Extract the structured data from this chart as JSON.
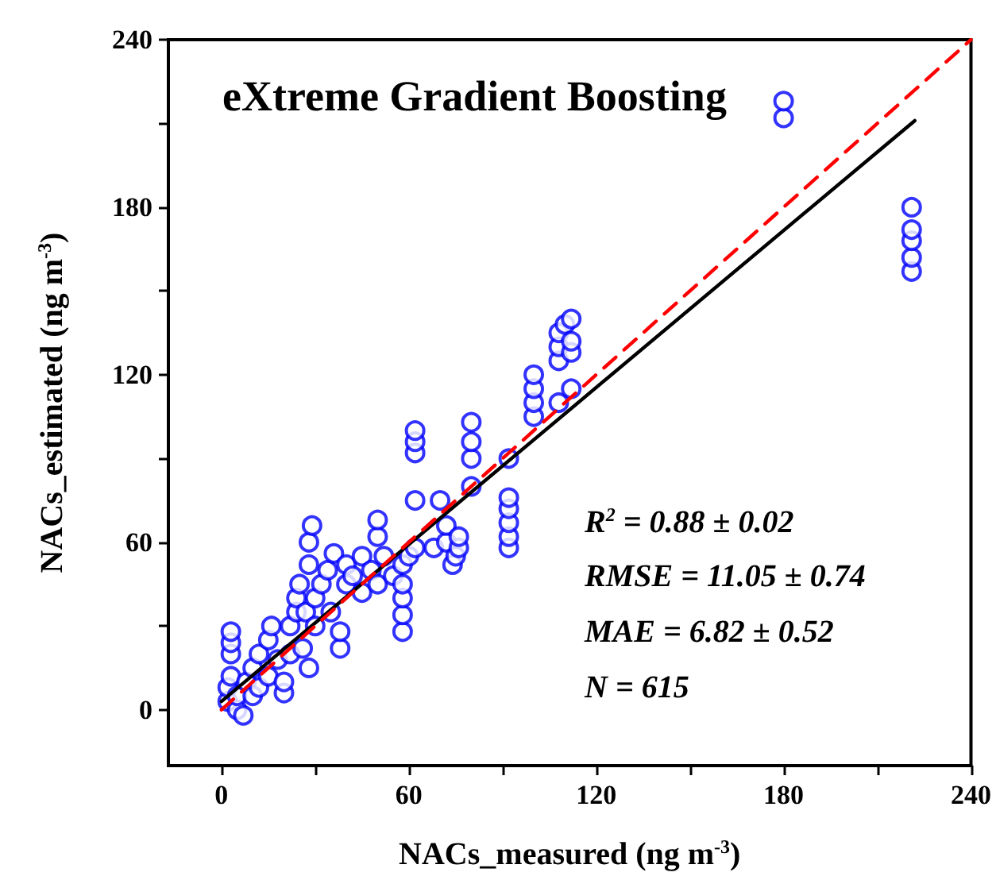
{
  "chart_data": {
    "type": "scatter",
    "title": "eXtreme Gradient Boosting",
    "xlabel": "NACs_measured (ng m$^{-3}$)",
    "ylabel": "NACs_estimated (ng m$^{-3}$)",
    "xlim": [
      -17,
      240
    ],
    "ylim": [
      -20,
      240
    ],
    "xticks": [
      0,
      {
        "value": 30,
        "label": null
      },
      60,
      {
        "value": 90,
        "label": null
      },
      120,
      {
        "value": 150,
        "label": null
      },
      180,
      {
        "value": 210,
        "label": null
      },
      240
    ],
    "yticks": [
      0,
      {
        "value": 30,
        "label": null
      },
      60,
      {
        "value": 90,
        "label": null
      },
      120,
      {
        "value": 150,
        "label": null
      },
      180,
      {
        "value": 210,
        "label": null
      },
      240
    ],
    "annotations": [
      "R$^{2}$ = 0.88 ± 0.02",
      "RMSE = 11.05 ± 0.74",
      "MAE = 6.82 ± 0.52",
      "N = 615"
    ],
    "series": [
      {
        "type": "scatter",
        "color": "#0000ff",
        "marker": "circle",
        "x": [
          2,
          2,
          3,
          3,
          3,
          3,
          5,
          5,
          7,
          8,
          10,
          10,
          12,
          12,
          15,
          15,
          16,
          18,
          20,
          20,
          22,
          22,
          24,
          24,
          25,
          26,
          27,
          28,
          28,
          28,
          29,
          30,
          30,
          32,
          34,
          35,
          36,
          38,
          38,
          40,
          40,
          42,
          45,
          45,
          48,
          50,
          50,
          50,
          52,
          55,
          58,
          58,
          58,
          58,
          58,
          60,
          62,
          62,
          62,
          62,
          62,
          68,
          70,
          72,
          72,
          74,
          75,
          76,
          76,
          80,
          80,
          80,
          80,
          92,
          92,
          92,
          92,
          92,
          92,
          100,
          100,
          100,
          100,
          108,
          108,
          108,
          108,
          110,
          112,
          112,
          112,
          112,
          180,
          180,
          221,
          221,
          221,
          221,
          221
        ],
        "values": [
          3,
          8,
          12,
          20,
          24,
          28,
          0,
          5,
          -2,
          10,
          5,
          15,
          20,
          8,
          12,
          25,
          30,
          18,
          6,
          10,
          20,
          30,
          35,
          40,
          45,
          22,
          35,
          15,
          52,
          60,
          66,
          30,
          40,
          45,
          50,
          35,
          56,
          22,
          28,
          45,
          52,
          48,
          42,
          55,
          50,
          62,
          68,
          45,
          55,
          48,
          28,
          34,
          40,
          45,
          52,
          55,
          58,
          75,
          92,
          96,
          100,
          58,
          75,
          60,
          66,
          52,
          55,
          58,
          62,
          80,
          90,
          96,
          103,
          58,
          62,
          67,
          72,
          76,
          90,
          105,
          110,
          115,
          120,
          110,
          125,
          130,
          135,
          138,
          128,
          132,
          140,
          115,
          212,
          218,
          157,
          162,
          168,
          172,
          180
        ]
      },
      {
        "type": "line",
        "color": "#000000",
        "line_style": "solid",
        "x": [
          0,
          222
        ],
        "values": [
          3,
          211
        ]
      },
      {
        "type": "line",
        "color": "#ff0000",
        "line_style": "dashed",
        "x": [
          0,
          240
        ],
        "values": [
          0,
          240
        ]
      }
    ]
  }
}
